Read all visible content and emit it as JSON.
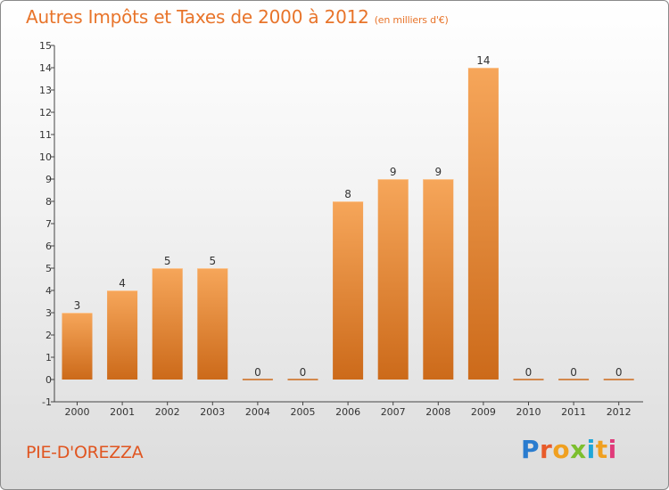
{
  "header": {
    "title": "Autres Impôts et Taxes de 2000 à 2012",
    "unit": "(en milliers d'€)"
  },
  "footer": {
    "place": "PIE-D'OREZZA",
    "logo_letters": [
      "P",
      "r",
      "o",
      "x",
      "i",
      "t",
      "i"
    ]
  },
  "colors": {
    "title": "#e8742a",
    "place": "#e05520",
    "bar_light": "#f6a65a",
    "bar_dark": "#cc6a1a"
  },
  "chart_data": {
    "type": "bar",
    "categories": [
      "2000",
      "2001",
      "2002",
      "2003",
      "2004",
      "2005",
      "2006",
      "2007",
      "2008",
      "2009",
      "2010",
      "2011",
      "2012"
    ],
    "values": [
      3,
      4,
      5,
      5,
      0,
      0,
      8,
      9,
      9,
      14,
      0,
      0,
      0
    ],
    "data_labels": [
      "3",
      "4",
      "5",
      "5",
      "0",
      "0",
      "8",
      "9",
      "9",
      "14",
      "0",
      "0",
      "0"
    ],
    "ylim": [
      -1,
      15
    ],
    "yticks": [
      "-1",
      "0",
      "1",
      "2",
      "3",
      "4",
      "5",
      "6",
      "7",
      "8",
      "9",
      "10",
      "11",
      "12",
      "13",
      "14",
      "15"
    ],
    "grid": false,
    "legend": "none"
  }
}
